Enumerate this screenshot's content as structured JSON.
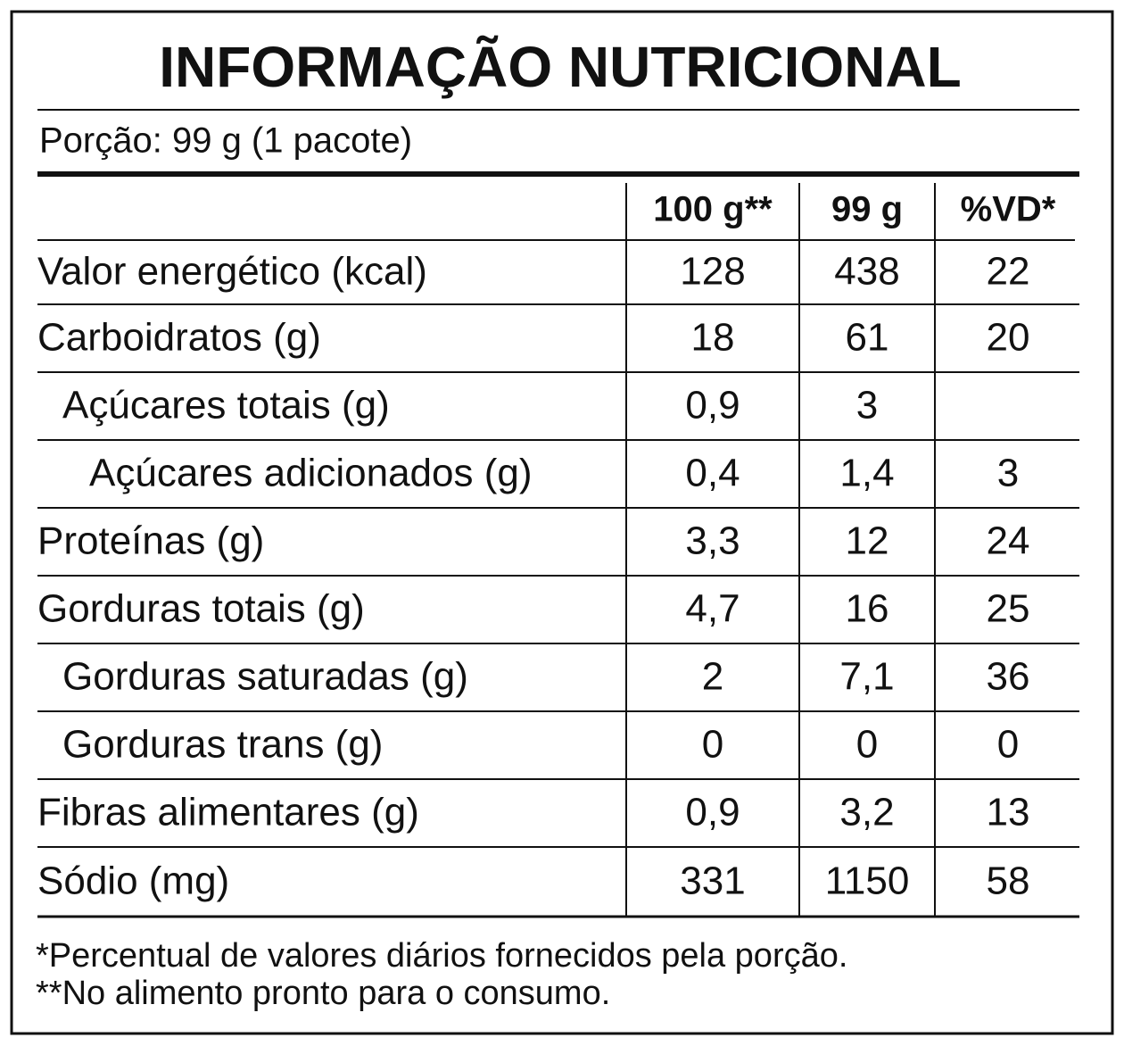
{
  "header": {
    "title": "INFORMAÇÃO NUTRICIONAL",
    "portion": "Porção: 99 g (1 pacote)"
  },
  "table": {
    "columns": [
      "100 g**",
      "99 g",
      "%VD*"
    ],
    "rows": [
      {
        "label": "Valor energético (kcal)",
        "cells": [
          "128",
          "438",
          "22"
        ]
      },
      {
        "label": "Carboidratos (g)",
        "cells": [
          "18",
          "61",
          "20"
        ]
      },
      {
        "label": "Açúcares totais (g)",
        "cells": [
          "0,9",
          "3",
          null
        ]
      },
      {
        "label": "Açúcares adicionados (g)",
        "cells": [
          "0,4",
          "1,4",
          "3"
        ]
      },
      {
        "label": "Proteínas (g)",
        "cells": [
          "3,3",
          "12",
          "24"
        ]
      },
      {
        "label": "Gorduras totais (g)",
        "cells": [
          "4,7",
          "16",
          "25"
        ]
      },
      {
        "label": "Gorduras saturadas (g)",
        "cells": [
          "2",
          "7,1",
          "36"
        ]
      },
      {
        "label": "Gorduras trans (g)",
        "cells": [
          "0",
          "0",
          "0"
        ]
      },
      {
        "label": "Fibras alimentares (g)",
        "cells": [
          "0,9",
          "3,2",
          "13"
        ]
      },
      {
        "label": "Sódio (mg)",
        "cells": [
          "331",
          "1150",
          "58"
        ]
      }
    ]
  },
  "footnotes": [
    "*Percentual de valores diários fornecidos pela porção.",
    "**No alimento pronto para o consumo."
  ]
}
